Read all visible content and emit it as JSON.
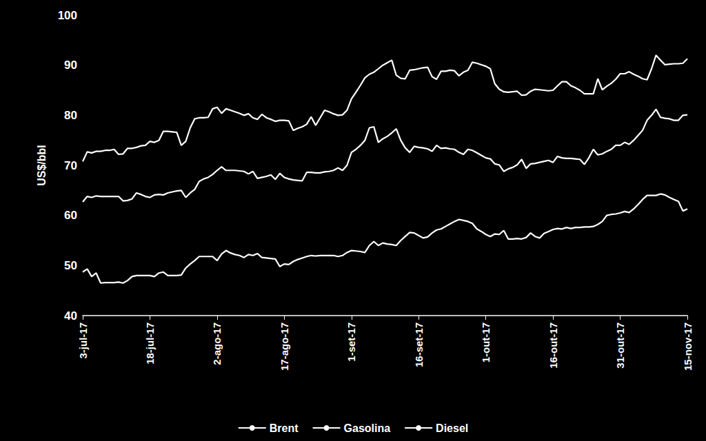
{
  "chart_data": {
    "type": "line",
    "y_label": "US$/bbl",
    "categories": [
      "3-jul-17",
      null,
      null,
      null,
      null,
      null,
      null,
      null,
      null,
      null,
      null,
      null,
      null,
      null,
      null,
      "18-jul-17",
      null,
      null,
      null,
      null,
      null,
      null,
      null,
      null,
      null,
      null,
      null,
      null,
      null,
      null,
      "2-ago-17",
      null,
      null,
      null,
      null,
      null,
      null,
      null,
      null,
      null,
      null,
      null,
      null,
      null,
      null,
      "17-ago-17",
      null,
      null,
      null,
      null,
      null,
      null,
      null,
      null,
      null,
      null,
      null,
      null,
      null,
      null,
      "1-set-17",
      null,
      null,
      null,
      null,
      null,
      null,
      null,
      null,
      null,
      null,
      null,
      null,
      null,
      null,
      "16-set-17",
      null,
      null,
      null,
      null,
      null,
      null,
      null,
      null,
      null,
      null,
      null,
      null,
      null,
      null,
      "1-out-17",
      null,
      null,
      null,
      null,
      null,
      null,
      null,
      null,
      null,
      null,
      null,
      null,
      null,
      null,
      "16-out-17",
      null,
      null,
      null,
      null,
      null,
      null,
      null,
      null,
      null,
      null,
      null,
      null,
      null,
      null,
      "31-out-17",
      null,
      null,
      null,
      null,
      null,
      null,
      null,
      null,
      null,
      null,
      null,
      null,
      null,
      null,
      "15-nov-17"
    ],
    "series": [
      {
        "name": "Brent",
        "color": "#ffffff",
        "values": [
          48.7,
          49.3,
          47.8,
          48.5,
          46.5,
          46.6,
          46.6,
          46.6,
          46.7,
          46.5,
          47,
          47.8,
          48,
          48,
          48,
          48,
          47.8,
          48.5,
          48.7,
          48,
          48,
          48,
          48.1,
          49.5,
          50.3,
          51,
          51.8,
          51.8,
          51.8,
          51.8,
          51,
          52.3,
          53,
          52.5,
          52.2,
          52,
          51.6,
          52.2,
          52,
          52.4,
          51.6,
          51.5,
          51.4,
          51.3,
          49.8,
          50.3,
          50.2,
          50.8,
          51.2,
          51.5,
          51.8,
          52,
          51.9,
          52,
          52,
          52,
          52,
          51.8,
          52,
          52.6,
          53,
          52.9,
          52.8,
          52.6,
          54,
          54.8,
          54,
          54.5,
          54.3,
          54.2,
          54,
          55,
          55.8,
          56.6,
          56.5,
          56,
          55.5,
          55.7,
          56.5,
          57.1,
          57.3,
          57.8,
          58.3,
          58.8,
          59.2,
          59,
          58.8,
          58.4,
          57.3,
          56.8,
          56.2,
          55.8,
          56.3,
          56.2,
          57,
          55.3,
          55.3,
          55.4,
          55.3,
          55.6,
          56.5,
          55.8,
          55.5,
          56.4,
          56.8,
          57.2,
          57.4,
          57.3,
          57.6,
          57.4,
          57.6,
          57.6,
          57.7,
          57.7,
          57.8,
          58.2,
          58.8,
          60,
          60.2,
          60.3,
          60.5,
          60.8,
          60.6,
          61.3,
          62.2,
          63.2,
          64,
          64,
          64,
          64.3,
          64.1,
          63.6,
          63.2,
          62.8,
          60.9,
          61.3
        ]
      },
      {
        "name": "Gasolina",
        "color": "#ffffff",
        "values": [
          62.7,
          63.8,
          63.6,
          63.9,
          63.8,
          63.8,
          63.8,
          63.8,
          63.8,
          62.9,
          63,
          63.3,
          64.5,
          64.2,
          63.8,
          63.6,
          64.1,
          64.2,
          64.1,
          64.5,
          64.7,
          64.9,
          65,
          63.6,
          64.5,
          65.2,
          66.8,
          67.3,
          67.6,
          68.2,
          69,
          69.7,
          69,
          69,
          69,
          68.9,
          68.8,
          68.3,
          68.8,
          67.4,
          67.6,
          67.8,
          68.1,
          67.2,
          68.4,
          67.6,
          67.3,
          67.1,
          67,
          66.9,
          68.6,
          68.6,
          68.5,
          68.5,
          68.7,
          68.8,
          69,
          69.5,
          69,
          70,
          72.6,
          73.2,
          74,
          75,
          77.5,
          77.7,
          74.6,
          75.3,
          75.8,
          76.5,
          77.3,
          75,
          73.5,
          72.6,
          73.8,
          73.6,
          73.5,
          73.3,
          72.8,
          74,
          73.4,
          73.5,
          73.3,
          73.2,
          72.6,
          72.2,
          73.2,
          73,
          72.5,
          72,
          71.5,
          71.3,
          70.3,
          70.1,
          68.8,
          69.3,
          69.6,
          70.1,
          71.2,
          69.4,
          70.3,
          70.4,
          70.6,
          70.8,
          71,
          70.6,
          71.8,
          71.5,
          71.4,
          71.4,
          71.3,
          71.2,
          70.2,
          71.5,
          73.2,
          72.1,
          72.3,
          72.8,
          73.2,
          74,
          74,
          74.6,
          74.2,
          75,
          76,
          77,
          79,
          80,
          81.2,
          79.6,
          79.4,
          79.3,
          79,
          79,
          80,
          80.1
        ]
      },
      {
        "name": "Diesel",
        "color": "#ffffff",
        "values": [
          70.8,
          72.7,
          72.5,
          72.8,
          72.8,
          73,
          73,
          73.2,
          72.2,
          72.3,
          73.4,
          73.4,
          73.6,
          73.9,
          74,
          74.8,
          74.6,
          75,
          76.8,
          76.8,
          76.7,
          76.6,
          74,
          74.8,
          77.5,
          79.3,
          79.5,
          79.5,
          79.6,
          81.3,
          81.6,
          80.4,
          81.3,
          81,
          80.7,
          80.4,
          80,
          80.3,
          79.5,
          79.2,
          80.2,
          79.5,
          79.2,
          78.8,
          79,
          79,
          78.9,
          77,
          77.4,
          77.7,
          78.2,
          79.7,
          78,
          79.5,
          81,
          80.7,
          80.3,
          80,
          80.1,
          81,
          83.3,
          84.6,
          86,
          87.5,
          88.2,
          88.6,
          89.3,
          90,
          90.5,
          91,
          88,
          87.4,
          87.3,
          89,
          89.1,
          89.3,
          89.5,
          89.6,
          87.7,
          87.2,
          88.8,
          88.8,
          89,
          88.9,
          87.9,
          88.6,
          89,
          90.6,
          90.4,
          90.1,
          89.8,
          89.3,
          86.3,
          85.2,
          84.7,
          84.6,
          84.7,
          84.8,
          84,
          84.1,
          84.8,
          85.2,
          85.1,
          85,
          84.9,
          85,
          85.9,
          86.7,
          86.7,
          85.9,
          85.5,
          85,
          84.3,
          84.3,
          84.3,
          87.3,
          85.1,
          85.8,
          86.4,
          87.2,
          88.3,
          88.3,
          88.7,
          88.2,
          87.8,
          87.3,
          87.1,
          89.3,
          92,
          91,
          90.1,
          90.2,
          90.3,
          90.3,
          90.4,
          91.3
        ]
      }
    ],
    "ylim": [
      40,
      100
    ],
    "yticks": [
      40,
      50,
      60,
      70,
      80,
      90,
      100
    ],
    "grid": false,
    "legend": "bottom"
  }
}
